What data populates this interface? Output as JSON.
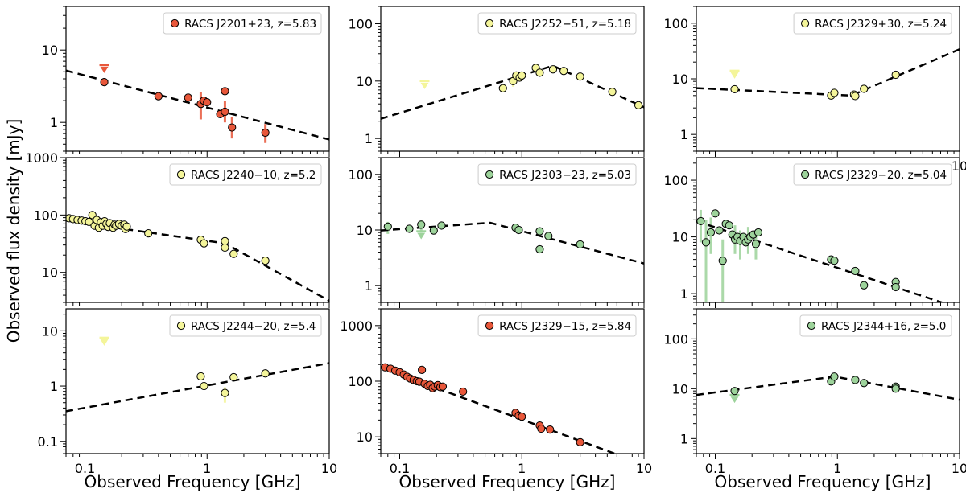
{
  "figure": {
    "ylabel": "Observed flux density [mJy]",
    "xlabel": "Observed Frequency [GHz]"
  },
  "colors": {
    "red": "#e8573a",
    "yellow": "#f4f59a",
    "green": "#9dd39b",
    "green_light": "#c8e8b4"
  },
  "chart_data": [
    {
      "type": "scatter",
      "legend": "RACS J2201+23, z=5.83",
      "color": "#e8573a",
      "xlim": [
        0.07,
        10
      ],
      "ylim": [
        0.4,
        40
      ],
      "yticks": [
        {
          "v": 1,
          "label": "1"
        },
        {
          "v": 10,
          "label": "10"
        }
      ],
      "xticks": [],
      "points": [
        [
          0.144,
          3.6
        ],
        [
          0.4,
          2.3
        ],
        [
          0.7,
          2.2
        ],
        [
          0.888,
          1.8
        ],
        [
          0.94,
          2.0
        ],
        [
          1.0,
          1.9
        ],
        [
          1.28,
          1.3
        ],
        [
          1.4,
          1.4
        ],
        [
          1.4,
          2.7
        ],
        [
          1.6,
          0.85
        ],
        [
          3.0,
          0.72
        ]
      ],
      "errors": [
        [
          0.888,
          1.1,
          2.6
        ],
        [
          1.4,
          1.0,
          2.0
        ],
        [
          1.6,
          0.6,
          1.2
        ],
        [
          3.0,
          0.52,
          0.95
        ]
      ],
      "upper_limits": [
        [
          0.144,
          6.2
        ]
      ],
      "model": [
        [
          0.07,
          5.2
        ],
        [
          10,
          0.58
        ]
      ]
    },
    {
      "type": "scatter",
      "legend": "RACS J2252−51, z=5.18",
      "color": "#f4f59a",
      "xlim": [
        0.07,
        10
      ],
      "ylim": [
        0.6,
        200
      ],
      "yticks": [
        {
          "v": 1,
          "label": "1"
        },
        {
          "v": 10,
          "label": "10"
        },
        {
          "v": 100,
          "label": "100"
        }
      ],
      "xticks": [],
      "points": [
        [
          0.7,
          7.5
        ],
        [
          0.85,
          10.0
        ],
        [
          0.9,
          12.5
        ],
        [
          0.96,
          11.5
        ],
        [
          1.0,
          12.5
        ],
        [
          1.3,
          17.0
        ],
        [
          1.4,
          14.0
        ],
        [
          1.8,
          16.0
        ],
        [
          2.2,
          15.0
        ],
        [
          3.0,
          12.0
        ],
        [
          5.5,
          6.5
        ],
        [
          9.0,
          3.8
        ]
      ],
      "errors": [
        [
          0.85,
          8.0,
          12.0
        ]
      ],
      "upper_limits": [
        [
          0.16,
          10.0
        ]
      ],
      "model": [
        [
          0.07,
          2.2
        ],
        [
          1.8,
          18.5
        ],
        [
          10,
          3.5
        ]
      ]
    },
    {
      "type": "scatter",
      "legend": "RACS J2329+30, z=5.24",
      "color": "#f4f59a",
      "xlim": [
        0.07,
        10
      ],
      "ylim": [
        0.5,
        200
      ],
      "yticks": [
        {
          "v": 1,
          "label": "1"
        },
        {
          "v": 10,
          "label": "10"
        },
        {
          "v": 100,
          "label": "100"
        }
      ],
      "xticks": [
        {
          "v": 10,
          "label": "10"
        }
      ],
      "points": [
        [
          0.144,
          6.5
        ],
        [
          0.888,
          5.0
        ],
        [
          0.944,
          5.6
        ],
        [
          1.367,
          5.2
        ],
        [
          1.4,
          4.9
        ],
        [
          1.65,
          6.6
        ],
        [
          3.0,
          11.8
        ]
      ],
      "errors": [],
      "upper_limits": [
        [
          0.144,
          14.0
        ]
      ],
      "model": [
        [
          0.07,
          6.8
        ],
        [
          1.3,
          5.0
        ],
        [
          10,
          34.0
        ]
      ]
    },
    {
      "type": "scatter",
      "legend": "RACS J2240−10, z=5.2",
      "color": "#f4f59a",
      "xlim": [
        0.07,
        10
      ],
      "ylim": [
        3,
        1000
      ],
      "yticks": [
        {
          "v": 10,
          "label": "10"
        },
        {
          "v": 100,
          "label": "100"
        },
        {
          "v": 1000,
          "label": "1000"
        }
      ],
      "xticks": [],
      "points": [
        [
          0.074,
          88
        ],
        [
          0.08,
          85
        ],
        [
          0.087,
          82
        ],
        [
          0.094,
          80
        ],
        [
          0.101,
          78
        ],
        [
          0.108,
          76
        ],
        [
          0.115,
          100
        ],
        [
          0.12,
          65
        ],
        [
          0.125,
          82
        ],
        [
          0.13,
          60
        ],
        [
          0.135,
          75
        ],
        [
          0.14,
          65
        ],
        [
          0.145,
          78
        ],
        [
          0.15,
          70
        ],
        [
          0.155,
          62
        ],
        [
          0.16,
          72
        ],
        [
          0.17,
          60
        ],
        [
          0.175,
          68
        ],
        [
          0.18,
          65
        ],
        [
          0.19,
          70
        ],
        [
          0.2,
          65
        ],
        [
          0.21,
          68
        ],
        [
          0.215,
          57
        ],
        [
          0.22,
          63
        ],
        [
          0.33,
          48
        ],
        [
          0.888,
          37
        ],
        [
          0.944,
          32
        ],
        [
          1.4,
          35
        ],
        [
          1.4,
          27
        ],
        [
          1.65,
          21
        ],
        [
          3.0,
          16
        ]
      ],
      "errors": [],
      "upper_limits": [],
      "model": [
        [
          0.07,
          80
        ],
        [
          1.4,
          32
        ],
        [
          10,
          3.2
        ]
      ]
    },
    {
      "type": "scatter",
      "legend": "RACS J2303−23, z=5.03",
      "color": "#9dd39b",
      "xlim": [
        0.07,
        10
      ],
      "ylim": [
        0.5,
        200
      ],
      "yticks": [
        {
          "v": 1,
          "label": "1"
        },
        {
          "v": 10,
          "label": "10"
        },
        {
          "v": 100,
          "label": "100"
        }
      ],
      "xticks": [],
      "points": [
        [
          0.08,
          11.5
        ],
        [
          0.12,
          10.5
        ],
        [
          0.15,
          12.5
        ],
        [
          0.19,
          9.8
        ],
        [
          0.22,
          12.0
        ],
        [
          0.888,
          11.0
        ],
        [
          0.944,
          10.0
        ],
        [
          1.4,
          9.5
        ],
        [
          1.4,
          4.5
        ],
        [
          1.65,
          7.8
        ],
        [
          3.0,
          5.5
        ]
      ],
      "errors": [
        [
          0.08,
          8.5,
          14.0
        ],
        [
          0.15,
          9.0,
          15.0
        ]
      ],
      "upper_limits": [
        [
          0.15,
          9.5
        ]
      ],
      "model": [
        [
          0.07,
          9.8
        ],
        [
          0.55,
          13.5
        ],
        [
          10,
          2.5
        ]
      ]
    },
    {
      "type": "scatter",
      "legend": "RACS J2329−20, z=5.04",
      "color": "#9dd39b",
      "xlim": [
        0.07,
        10
      ],
      "ylim": [
        0.7,
        250
      ],
      "yticks": [
        {
          "v": 1,
          "label": "1"
        },
        {
          "v": 10,
          "label": "10"
        },
        {
          "v": 100,
          "label": "100"
        }
      ],
      "xticks": [],
      "points": [
        [
          0.076,
          19
        ],
        [
          0.084,
          8
        ],
        [
          0.092,
          12
        ],
        [
          0.1,
          26
        ],
        [
          0.108,
          13
        ],
        [
          0.115,
          3.8
        ],
        [
          0.122,
          17
        ],
        [
          0.13,
          16
        ],
        [
          0.138,
          11
        ],
        [
          0.145,
          9
        ],
        [
          0.152,
          10
        ],
        [
          0.16,
          8.5
        ],
        [
          0.17,
          10
        ],
        [
          0.178,
          8
        ],
        [
          0.186,
          9
        ],
        [
          0.194,
          10
        ],
        [
          0.205,
          11
        ],
        [
          0.215,
          7.5
        ],
        [
          0.225,
          12
        ],
        [
          0.888,
          4.0
        ],
        [
          0.944,
          3.8
        ],
        [
          1.4,
          2.5
        ],
        [
          1.65,
          1.4
        ],
        [
          3.0,
          1.6
        ],
        [
          3.0,
          1.3
        ]
      ],
      "errors": [
        [
          0.076,
          8,
          30
        ],
        [
          0.084,
          0.7,
          20
        ],
        [
          0.092,
          5,
          22
        ],
        [
          0.115,
          0.7,
          9
        ],
        [
          0.145,
          5,
          16
        ],
        [
          0.16,
          4,
          13
        ],
        [
          0.186,
          5,
          15
        ],
        [
          0.215,
          4,
          12
        ]
      ],
      "upper_limits": [],
      "model": [
        [
          0.07,
          19
        ],
        [
          10,
          0.55
        ]
      ]
    },
    {
      "type": "scatter",
      "legend": "RACS J2244−20, z=5.4",
      "color": "#f4f59a",
      "xlim": [
        0.07,
        10
      ],
      "ylim": [
        0.06,
        25
      ],
      "yticks": [
        {
          "v": 0.1,
          "label": "0.1"
        },
        {
          "v": 1,
          "label": "1"
        },
        {
          "v": 10,
          "label": "10"
        }
      ],
      "xticks": [
        {
          "v": 0.1,
          "label": "0.1"
        },
        {
          "v": 1,
          "label": "1"
        },
        {
          "v": 10,
          "label": "10"
        }
      ],
      "points": [
        [
          0.888,
          1.5
        ],
        [
          0.944,
          1.0
        ],
        [
          1.4,
          0.75
        ],
        [
          1.65,
          1.45
        ],
        [
          3.0,
          1.7
        ]
      ],
      "errors": [
        [
          1.4,
          0.5,
          0.95
        ]
      ],
      "upper_limits": [
        [
          0.144,
          7.5
        ]
      ],
      "model": [
        [
          0.07,
          0.35
        ],
        [
          10,
          2.6
        ]
      ]
    },
    {
      "type": "scatter",
      "legend": "RACS J2329−15, z=5.84",
      "color": "#e8573a",
      "xlim": [
        0.07,
        10
      ],
      "ylim": [
        5,
        2000
      ],
      "yticks": [
        {
          "v": 10,
          "label": "10"
        },
        {
          "v": 100,
          "label": "100"
        },
        {
          "v": 1000,
          "label": "1000"
        }
      ],
      "xticks": [
        {
          "v": 0.1,
          "label": "0.1"
        },
        {
          "v": 1,
          "label": "1"
        },
        {
          "v": 10,
          "label": "10"
        }
      ],
      "points": [
        [
          0.076,
          178
        ],
        [
          0.084,
          168
        ],
        [
          0.092,
          155
        ],
        [
          0.1,
          145
        ],
        [
          0.108,
          132
        ],
        [
          0.115,
          120
        ],
        [
          0.122,
          112
        ],
        [
          0.13,
          105
        ],
        [
          0.138,
          100
        ],
        [
          0.145,
          98
        ],
        [
          0.152,
          160
        ],
        [
          0.16,
          90
        ],
        [
          0.17,
          82
        ],
        [
          0.178,
          86
        ],
        [
          0.186,
          75
        ],
        [
          0.194,
          80
        ],
        [
          0.205,
          85
        ],
        [
          0.215,
          78
        ],
        [
          0.225,
          80
        ],
        [
          0.33,
          65
        ],
        [
          0.888,
          27
        ],
        [
          0.944,
          24
        ],
        [
          1.0,
          23
        ],
        [
          1.4,
          16
        ],
        [
          1.44,
          14
        ],
        [
          1.7,
          13.5
        ],
        [
          3.0,
          8.0
        ]
      ],
      "errors": [],
      "upper_limits": [],
      "model": [
        [
          0.07,
          175
        ],
        [
          10,
          3.2
        ]
      ]
    },
    {
      "type": "scatter",
      "legend": "RACS J2344+16, z=5.0",
      "color": "#9dd39b",
      "xlim": [
        0.07,
        10
      ],
      "ylim": [
        0.5,
        400
      ],
      "yticks": [
        {
          "v": 1,
          "label": "1"
        },
        {
          "v": 10,
          "label": "10"
        },
        {
          "v": 100,
          "label": "100"
        }
      ],
      "xticks": [
        {
          "v": 0.1,
          "label": "0.1"
        },
        {
          "v": 1,
          "label": "1"
        },
        {
          "v": 10,
          "label": "10"
        }
      ],
      "points": [
        [
          0.144,
          9.0
        ],
        [
          0.888,
          14.0
        ],
        [
          0.944,
          17.5
        ],
        [
          1.4,
          15.0
        ],
        [
          1.65,
          13.0
        ],
        [
          3.0,
          11.0
        ],
        [
          3.0,
          10.0
        ]
      ],
      "errors": [],
      "upper_limits": [
        [
          0.144,
          7.5
        ]
      ],
      "model": [
        [
          0.07,
          7.5
        ],
        [
          0.95,
          17.5
        ],
        [
          10,
          6.0
        ]
      ]
    }
  ]
}
